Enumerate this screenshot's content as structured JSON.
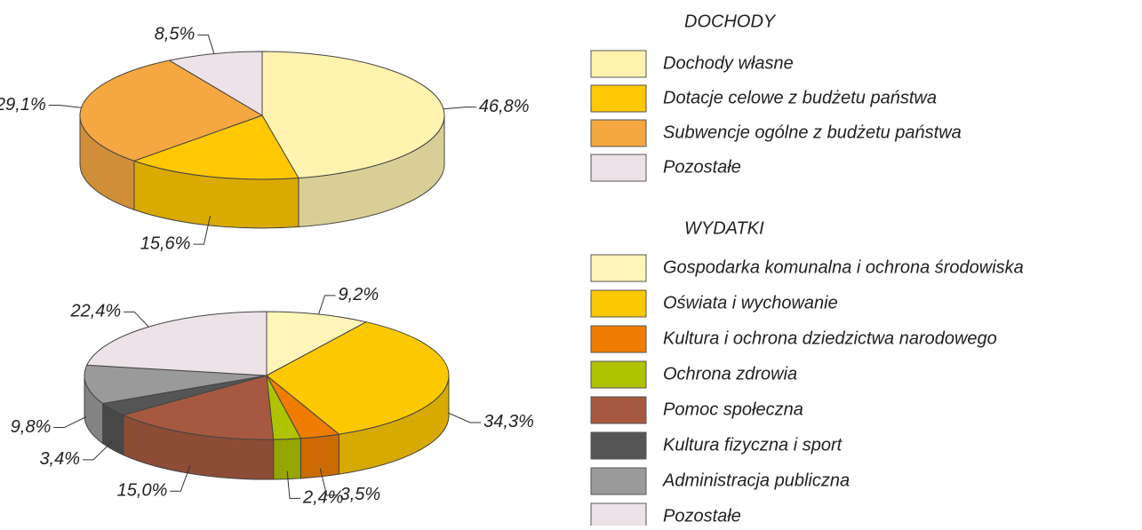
{
  "chart_data": [
    {
      "type": "pie",
      "title": "DOCHODY",
      "categories": [
        "Dochody własne",
        "Dotacje celowe z budżetu państwa",
        "Subwencje ogólne z budżetu państwa",
        "Pozostałe"
      ],
      "values": [
        46.8,
        15.6,
        29.1,
        8.5
      ],
      "value_labels": [
        "46,8%",
        "15,6%",
        "29,1%",
        "8,5%"
      ],
      "colors": [
        "#fff3b0",
        "#ffc800",
        "#f5a742",
        "#ede2e8"
      ]
    },
    {
      "type": "pie",
      "title": "WYDATKI",
      "categories": [
        "Gospodarka komunalna i ochrona środowiska",
        "Oświata i wychowanie",
        "Kultura i ochrona dziedzictwa narodowego",
        "Ochrona zdrowia",
        "Pomoc społeczna",
        "Kultura fizyczna i sport",
        "Administracja publiczna",
        "Pozostałe"
      ],
      "values": [
        9.2,
        34.3,
        3.5,
        2.4,
        15.0,
        3.4,
        9.8,
        22.4
      ],
      "value_labels": [
        "9,2%",
        "34,3%",
        "3,5%",
        "2,4%",
        "15,0%",
        "3,4%",
        "9,8%",
        "22,4%"
      ],
      "colors": [
        "#fff5b8",
        "#fcc800",
        "#ee7d00",
        "#afc300",
        "#a65940",
        "#555555",
        "#9a9a9a",
        "#ede2e8"
      ]
    }
  ]
}
